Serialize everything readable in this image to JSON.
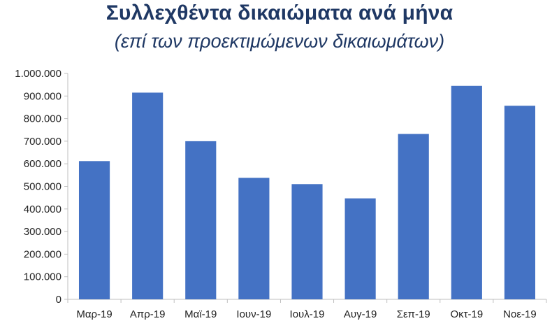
{
  "header": {
    "title": "Συλλεχθέντα δικαιώματα ανά μήνα",
    "subtitle": "(επί των προεκτιμώμενων δικαιωμάτων)"
  },
  "colors": {
    "bar": "#4472c4",
    "title": "#1f3864",
    "axis": "#bfbfbf"
  },
  "chart_data": {
    "type": "bar",
    "title": "Συλλεχθέντα δικαιώματα ανά μήνα",
    "subtitle": "(επί των προεκτιμώμενων δικαιωμάτων)",
    "categories": [
      "Μαρ-19",
      "Απρ-19",
      "Μαϊ-19",
      "Ιουν-19",
      "Ιουλ-19",
      "Αυγ-19",
      "Σεπ-19",
      "Οκτ-19",
      "Νοε-19"
    ],
    "values": [
      612000,
      915000,
      700000,
      538000,
      510000,
      447000,
      732000,
      945000,
      857000
    ],
    "ylim": [
      0,
      1000000
    ],
    "yticks": [
      "0",
      "100.000",
      "200.000",
      "300.000",
      "400.000",
      "500.000",
      "600.000",
      "700.000",
      "800.000",
      "900.000",
      "1.000.000"
    ],
    "ytick_values": [
      0,
      100000,
      200000,
      300000,
      400000,
      500000,
      600000,
      700000,
      800000,
      900000,
      1000000
    ],
    "xlabel": "",
    "ylabel": "",
    "grid": false,
    "legend": "none"
  }
}
